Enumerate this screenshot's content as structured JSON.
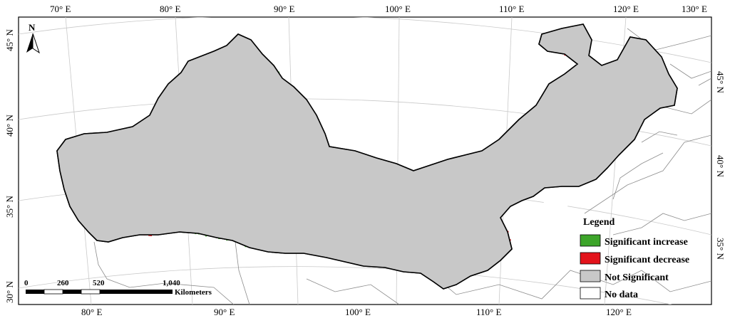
{
  "map": {
    "top_longitude_labels": [
      "70° E",
      "80° E",
      "90° E",
      "100° E",
      "110° E",
      "120° E",
      "130° E"
    ],
    "bottom_longitude_labels": [
      "80° E",
      "90° E",
      "100° E",
      "110° E",
      "120° E"
    ],
    "left_latitude_labels": [
      "45° N",
      "40° N",
      "35° N",
      "30° N"
    ],
    "right_latitude_labels": [
      "45° N",
      "40° N",
      "35° N"
    ],
    "north_arrow": {
      "letter": "N",
      "icon": "north-arrow-icon"
    },
    "legend": {
      "title": "Legend",
      "items": [
        {
          "label": "Significant increase",
          "color": "#3da52a"
        },
        {
          "label": "Significant decrease",
          "color": "#e3131b"
        },
        {
          "label": "Not Significant",
          "color": "#c8c8c8"
        },
        {
          "label": "No data",
          "color": "#ffffff"
        }
      ]
    },
    "scale_bar": {
      "ticks": [
        "0",
        "260",
        "520",
        "1,040"
      ],
      "unit": "Kilometers"
    },
    "colors": {
      "frame": "#000000",
      "graticule": "#c9c9c9",
      "boundaries": "#8c8c8c",
      "region_fill": "#c8c8c8",
      "region_outline": "#000000"
    }
  }
}
